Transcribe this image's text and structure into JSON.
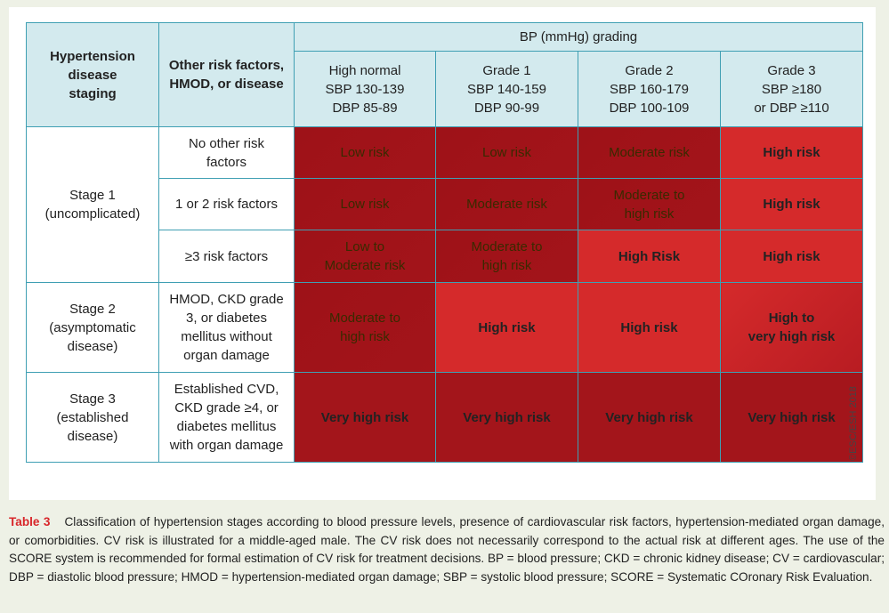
{
  "table": {
    "header": {
      "staging": "Hypertension\ndisease\nstaging",
      "factors": "Other risk factors,\nHMOD, or disease",
      "bp_title": "BP (mmHg) grading",
      "grades": [
        "High normal\nSBP 130-139\nDBP 85-89",
        "Grade 1\nSBP 140-159\nDBP 90-99",
        "Grade 2\nSBP 160-179\nDBP 100-109",
        "Grade 3\nSBP ≥180\nor DBP ≥110"
      ]
    },
    "stages": [
      {
        "label": "Stage 1\n(uncomplicated)",
        "rows": [
          {
            "factor": "No other risk\nfactors",
            "cells": [
              "Low risk",
              "Low risk",
              "Moderate risk",
              "High risk"
            ]
          },
          {
            "factor": "1 or 2 risk factors",
            "cells": [
              "Low risk",
              "Moderate risk",
              "Moderate to\nhigh risk",
              "High risk"
            ]
          },
          {
            "factor": "≥3 risk factors",
            "cells": [
              "Low to\nModerate risk",
              "Moderate to\nhigh risk",
              "High Risk",
              "High risk"
            ]
          }
        ]
      },
      {
        "label": "Stage 2\n(asymptomatic\ndisease)",
        "rows": [
          {
            "factor": "HMOD, CKD grade\n3, or diabetes\nmellitus without\norgan damage",
            "cells": [
              "Moderate to\nhigh risk",
              "High risk",
              "High risk",
              "High to\nvery high risk"
            ]
          }
        ]
      },
      {
        "label": "Stage 3\n(established\ndisease)",
        "rows": [
          {
            "factor": "Established CVD,\nCKD grade ≥4, or\ndiabetes mellitus\nwith organ damage",
            "cells": [
              "Very high risk",
              "Very high risk",
              "Very high risk",
              "Very high risk"
            ]
          }
        ]
      }
    ]
  },
  "copyright": "©ESC/ESH 2018",
  "caption": {
    "label": "Table 3",
    "text": "Classification of hypertension stages according to blood pressure levels, presence of cardiovascular risk factors, hypertension-mediated organ damage, or comorbidities. CV risk is illustrated for a middle-aged male. The CV risk does not necessarily correspond to the actual risk at different ages. The use of the SCORE system is recommended for formal estimation of CV risk for treatment decisions. BP = blood pressure; CKD = chronic kidney disease; CV = cardiovascular; DBP = diastolic blood pressure; HMOD = hypertension-mediated organ damage; SBP = systolic blood pressure; SCORE = Systematic COronary Risk Evaluation."
  },
  "colors": {
    "header_bg": "#d3eaee",
    "border": "#3f9fb3",
    "low": "#fbeb06",
    "moderate": "#ed9a22",
    "high": "#d52a2b",
    "very_high": "#a3151b",
    "caption_label": "#d8262a"
  }
}
